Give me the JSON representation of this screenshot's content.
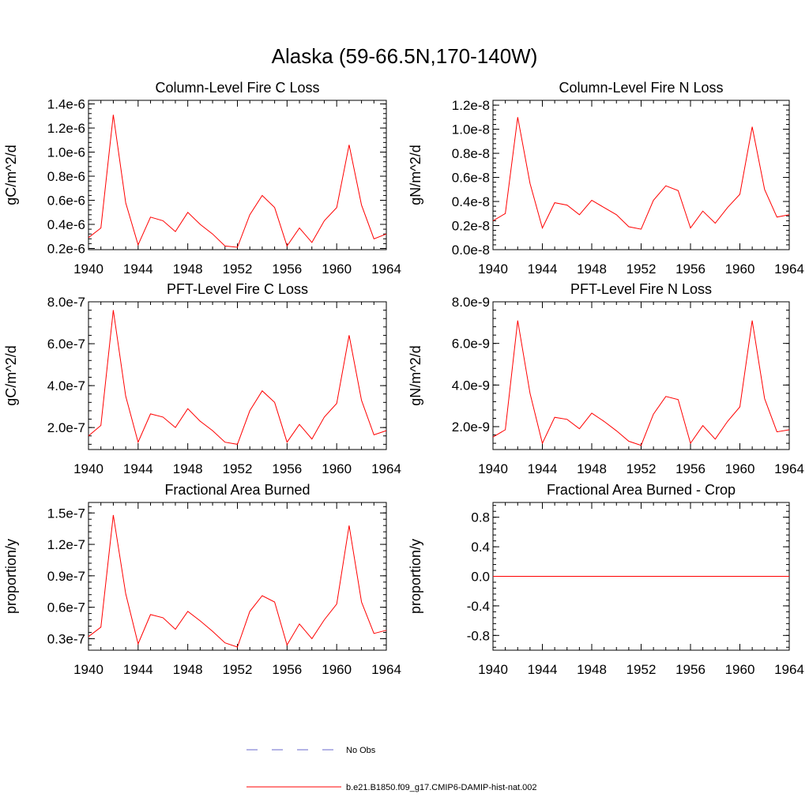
{
  "title": "Alaska (59-66.5N,170-140W)",
  "chart_data": [
    {
      "type": "line",
      "title": "Column-Level Fire C Loss",
      "ylabel": "gC/m^2/d",
      "xlim": [
        1940,
        1964
      ],
      "ylim": [
        1.9e-07,
        1.43e-06
      ],
      "xticks": [
        1940,
        1944,
        1948,
        1952,
        1956,
        1960,
        1964
      ],
      "xtick_labels": [
        "1940",
        "1944",
        "1948",
        "1952",
        "1956",
        "1960",
        "1964"
      ],
      "yticks": [
        2e-07,
        4e-07,
        6e-07,
        8e-07,
        1e-06,
        1.2e-06,
        1.4e-06
      ],
      "ytick_labels": [
        "0.2e-6",
        "0.4e-6",
        "0.6e-6",
        "0.8e-6",
        "1.0e-6",
        "1.2e-6",
        "1.4e-6"
      ],
      "x": [
        1940,
        1941,
        1942,
        1943,
        1944,
        1945,
        1946,
        1947,
        1948,
        1949,
        1950,
        1951,
        1952,
        1953,
        1954,
        1955,
        1956,
        1957,
        1958,
        1959,
        1960,
        1961,
        1962,
        1963,
        1964
      ],
      "values": [
        2.9e-07,
        3.7e-07,
        1.31e-06,
        5.8e-07,
        2.3e-07,
        4.6e-07,
        4.3e-07,
        3.4e-07,
        5e-07,
        4e-07,
        3.2e-07,
        2.2e-07,
        2.1e-07,
        4.8e-07,
        6.4e-07,
        5.4e-07,
        2.2e-07,
        3.7e-07,
        2.5e-07,
        4.3e-07,
        5.4e-07,
        1.06e-06,
        5.6e-07,
        2.8e-07,
        3.2e-07
      ]
    },
    {
      "type": "line",
      "title": "Column-Level Fire N Loss",
      "ylabel": "gN/m^2/d",
      "xlim": [
        1940,
        1964
      ],
      "ylim": [
        0,
        1.24e-08
      ],
      "xticks": [
        1940,
        1944,
        1948,
        1952,
        1956,
        1960,
        1964
      ],
      "xtick_labels": [
        "1940",
        "1944",
        "1948",
        "1952",
        "1956",
        "1960",
        "1964"
      ],
      "yticks": [
        0,
        2e-09,
        4e-09,
        6e-09,
        8e-09,
        1e-08,
        1.2e-08
      ],
      "ytick_labels": [
        "0.0e-8",
        "0.2e-8",
        "0.4e-8",
        "0.6e-8",
        "0.8e-8",
        "1.0e-8",
        "1.2e-8"
      ],
      "x": [
        1940,
        1941,
        1942,
        1943,
        1944,
        1945,
        1946,
        1947,
        1948,
        1949,
        1950,
        1951,
        1952,
        1953,
        1954,
        1955,
        1956,
        1957,
        1958,
        1959,
        1960,
        1961,
        1962,
        1963,
        1964
      ],
      "values": [
        2.4e-09,
        3e-09,
        1.1e-08,
        5.5e-09,
        1.8e-09,
        3.9e-09,
        3.7e-09,
        2.9e-09,
        4.1e-09,
        3.5e-09,
        2.9e-09,
        1.9e-09,
        1.7e-09,
        4.1e-09,
        5.3e-09,
        4.9e-09,
        1.8e-09,
        3.2e-09,
        2.2e-09,
        3.5e-09,
        4.6e-09,
        1.02e-08,
        5e-09,
        2.7e-09,
        2.9e-09
      ]
    },
    {
      "type": "line",
      "title": "PFT-Level Fire C Loss",
      "ylabel": "gC/m^2/d",
      "xlim": [
        1940,
        1964
      ],
      "ylim": [
        9.5e-08,
        8e-07
      ],
      "xticks": [
        1940,
        1944,
        1948,
        1952,
        1956,
        1960,
        1964
      ],
      "xtick_labels": [
        "1940",
        "1944",
        "1948",
        "1952",
        "1956",
        "1960",
        "1964"
      ],
      "yticks": [
        2e-07,
        4e-07,
        6e-07,
        8e-07
      ],
      "ytick_labels": [
        "2.0e-7",
        "4.0e-7",
        "6.0e-7",
        "8.0e-7"
      ],
      "x": [
        1940,
        1941,
        1942,
        1943,
        1944,
        1945,
        1946,
        1947,
        1948,
        1949,
        1950,
        1951,
        1952,
        1953,
        1954,
        1955,
        1956,
        1957,
        1958,
        1959,
        1960,
        1961,
        1962,
        1963,
        1964
      ],
      "values": [
        1.6e-07,
        2.1e-07,
        7.6e-07,
        3.5e-07,
        1.3e-07,
        2.65e-07,
        2.5e-07,
        2e-07,
        2.9e-07,
        2.3e-07,
        1.85e-07,
        1.3e-07,
        1.2e-07,
        2.8e-07,
        3.75e-07,
        3.2e-07,
        1.3e-07,
        2.15e-07,
        1.45e-07,
        2.5e-07,
        3.15e-07,
        6.4e-07,
        3.3e-07,
        1.65e-07,
        1.85e-07
      ]
    },
    {
      "type": "line",
      "title": "PFT-Level Fire N Loss",
      "ylabel": "gN/m^2/d",
      "xlim": [
        1940,
        1964
      ],
      "ylim": [
        9e-10,
        8e-09
      ],
      "xticks": [
        1940,
        1944,
        1948,
        1952,
        1956,
        1960,
        1964
      ],
      "xtick_labels": [
        "1940",
        "1944",
        "1948",
        "1952",
        "1956",
        "1960",
        "1964"
      ],
      "yticks": [
        2e-09,
        4e-09,
        6e-09,
        8e-09
      ],
      "ytick_labels": [
        "2.0e-9",
        "4.0e-9",
        "6.0e-9",
        "8.0e-9"
      ],
      "x": [
        1940,
        1941,
        1942,
        1943,
        1944,
        1945,
        1946,
        1947,
        1948,
        1949,
        1950,
        1951,
        1952,
        1953,
        1954,
        1955,
        1956,
        1957,
        1958,
        1959,
        1960,
        1961,
        1962,
        1963,
        1964
      ],
      "values": [
        1.5e-09,
        1.85e-09,
        7.1e-09,
        3.6e-09,
        1.2e-09,
        2.45e-09,
        2.35e-09,
        1.9e-09,
        2.65e-09,
        2.25e-09,
        1.8e-09,
        1.3e-09,
        1.1e-09,
        2.6e-09,
        3.45e-09,
        3.3e-09,
        1.2e-09,
        2.05e-09,
        1.4e-09,
        2.25e-09,
        2.95e-09,
        7.1e-09,
        3.35e-09,
        1.75e-09,
        1.85e-09
      ]
    },
    {
      "type": "line",
      "title": "Fractional Area Burned",
      "ylabel": "proportion/y",
      "xlim": [
        1940,
        1964
      ],
      "ylim": [
        1.9e-08,
        1.6e-07
      ],
      "xticks": [
        1940,
        1944,
        1948,
        1952,
        1956,
        1960,
        1964
      ],
      "xtick_labels": [
        "1940",
        "1944",
        "1948",
        "1952",
        "1956",
        "1960",
        "1964"
      ],
      "yticks": [
        3e-08,
        6e-08,
        9e-08,
        1.2e-07,
        1.5e-07
      ],
      "ytick_labels": [
        "0.3e-7",
        "0.6e-7",
        "0.9e-7",
        "1.2e-7",
        "1.5e-7"
      ],
      "x": [
        1940,
        1941,
        1942,
        1943,
        1944,
        1945,
        1946,
        1947,
        1948,
        1949,
        1950,
        1951,
        1952,
        1953,
        1954,
        1955,
        1956,
        1957,
        1958,
        1959,
        1960,
        1961,
        1962,
        1963,
        1964
      ],
      "values": [
        3.2e-08,
        4.1e-08,
        1.48e-07,
        7.3e-08,
        2.5e-08,
        5.3e-08,
        5e-08,
        3.9e-08,
        5.6e-08,
        4.7e-08,
        3.7e-08,
        2.6e-08,
        2.2e-08,
        5.6e-08,
        7.1e-08,
        6.5e-08,
        2.4e-08,
        4.4e-08,
        3e-08,
        4.8e-08,
        6.3e-08,
        1.38e-07,
        6.5e-08,
        3.5e-08,
        3.8e-08
      ]
    },
    {
      "type": "line",
      "title": "Fractional Area Burned - Crop",
      "ylabel": "proportion/y",
      "xlim": [
        1940,
        1964
      ],
      "ylim": [
        -1.0,
        1.0
      ],
      "xticks": [
        1940,
        1944,
        1948,
        1952,
        1956,
        1960,
        1964
      ],
      "xtick_labels": [
        "1940",
        "1944",
        "1948",
        "1952",
        "1956",
        "1960",
        "1964"
      ],
      "yticks": [
        -0.8,
        -0.4,
        0.0,
        0.4,
        0.8
      ],
      "ytick_labels": [
        "-0.8",
        "-0.4",
        "0.0",
        "0.4",
        "0.8"
      ],
      "x": [
        1940,
        1964
      ],
      "values": [
        0,
        0
      ]
    }
  ],
  "legend": [
    {
      "label": "No Obs",
      "color": "#6a6acd",
      "dash": "dashed"
    },
    {
      "label": "b.e21.B1850.f09_g17.CMIP6-DAMIP-hist-nat.002",
      "color": "#ff0000",
      "dash": "solid"
    }
  ]
}
